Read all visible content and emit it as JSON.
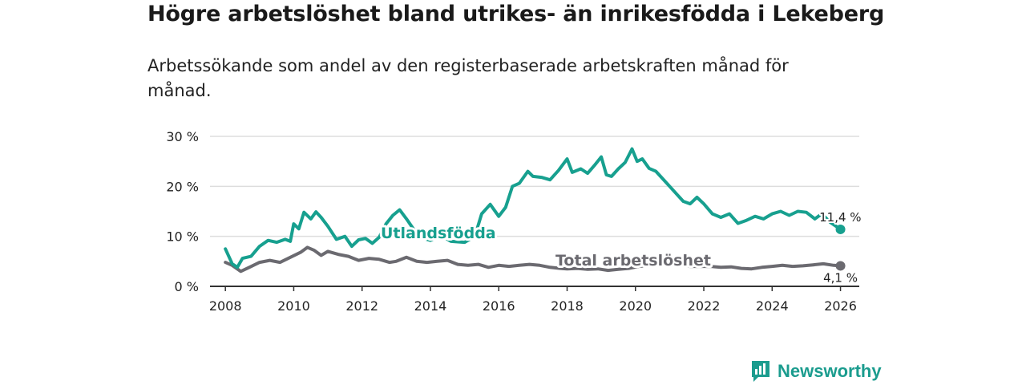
{
  "header": {
    "title": "Högre arbetslöshet bland utrikes- än inrikesfödda i Lekeberg",
    "subtitle": "Arbetssökande som andel av den registerbaserade arbetskraften månad för månad."
  },
  "brand": {
    "name": "Newsworthy",
    "icon": "bar-chart-icon",
    "color": "#1b9c8e"
  },
  "colors": {
    "utrikes": "#17a08f",
    "total": "#6b6a70",
    "grid": "#dddddd",
    "axis": "#333333"
  },
  "chart_data": {
    "type": "line",
    "title": "Högre arbetslöshet bland utrikes- än inrikesfödda i Lekeberg",
    "xlabel": "",
    "ylabel": "",
    "xlim": [
      2007.55,
      2026.55
    ],
    "ylim": [
      0,
      30
    ],
    "grid": true,
    "x_ticks": [
      2008,
      2010,
      2012,
      2014,
      2016,
      2018,
      2020,
      2022,
      2024,
      2026
    ],
    "x_tick_labels": [
      "2008",
      "2010",
      "2012",
      "2014",
      "2016",
      "2018",
      "2020",
      "2022",
      "2024",
      "2026"
    ],
    "y_ticks": [
      0,
      10,
      20,
      30
    ],
    "y_tick_labels": [
      "0 %",
      "10 %",
      "20 %",
      "30 %"
    ],
    "series": [
      {
        "name": "Utlandsfödda",
        "end_label": "11,4 %",
        "end_value": 11.4,
        "points": [
          [
            2008.0,
            7.5
          ],
          [
            2008.2,
            4.5
          ],
          [
            2008.35,
            3.8
          ],
          [
            2008.5,
            5.6
          ],
          [
            2008.75,
            6.0
          ],
          [
            2009.0,
            8.0
          ],
          [
            2009.25,
            9.2
          ],
          [
            2009.5,
            8.8
          ],
          [
            2009.75,
            9.4
          ],
          [
            2009.9,
            9.0
          ],
          [
            2010.0,
            12.5
          ],
          [
            2010.15,
            11.5
          ],
          [
            2010.3,
            14.8
          ],
          [
            2010.5,
            13.5
          ],
          [
            2010.65,
            14.9
          ],
          [
            2010.8,
            13.8
          ],
          [
            2011.0,
            12.0
          ],
          [
            2011.25,
            9.4
          ],
          [
            2011.5,
            10.0
          ],
          [
            2011.7,
            8.0
          ],
          [
            2011.9,
            9.3
          ],
          [
            2012.1,
            9.6
          ],
          [
            2012.3,
            8.6
          ],
          [
            2012.5,
            9.8
          ],
          [
            2012.7,
            12.5
          ],
          [
            2012.9,
            14.2
          ],
          [
            2013.1,
            15.3
          ],
          [
            2013.3,
            13.5
          ],
          [
            2013.5,
            11.5
          ],
          [
            2013.7,
            9.8
          ],
          [
            2014.0,
            9.2
          ],
          [
            2014.3,
            10.2
          ],
          [
            2014.6,
            9.0
          ],
          [
            2015.0,
            8.8
          ],
          [
            2015.3,
            10.0
          ],
          [
            2015.5,
            14.5
          ],
          [
            2015.75,
            16.4
          ],
          [
            2016.0,
            14.0
          ],
          [
            2016.2,
            15.8
          ],
          [
            2016.4,
            20.0
          ],
          [
            2016.6,
            20.6
          ],
          [
            2016.85,
            23.0
          ],
          [
            2017.0,
            22.0
          ],
          [
            2017.25,
            21.8
          ],
          [
            2017.5,
            21.3
          ],
          [
            2017.75,
            23.2
          ],
          [
            2018.0,
            25.5
          ],
          [
            2018.15,
            22.8
          ],
          [
            2018.4,
            23.5
          ],
          [
            2018.6,
            22.6
          ],
          [
            2018.8,
            24.2
          ],
          [
            2019.0,
            25.9
          ],
          [
            2019.15,
            22.3
          ],
          [
            2019.3,
            22.0
          ],
          [
            2019.5,
            23.5
          ],
          [
            2019.7,
            24.8
          ],
          [
            2019.9,
            27.5
          ],
          [
            2020.05,
            25.0
          ],
          [
            2020.2,
            25.5
          ],
          [
            2020.4,
            23.6
          ],
          [
            2020.6,
            23.0
          ],
          [
            2020.8,
            21.5
          ],
          [
            2021.0,
            20.0
          ],
          [
            2021.2,
            18.5
          ],
          [
            2021.4,
            17.0
          ],
          [
            2021.6,
            16.5
          ],
          [
            2021.8,
            17.8
          ],
          [
            2022.0,
            16.5
          ],
          [
            2022.25,
            14.5
          ],
          [
            2022.5,
            13.8
          ],
          [
            2022.75,
            14.5
          ],
          [
            2023.0,
            12.6
          ],
          [
            2023.25,
            13.2
          ],
          [
            2023.5,
            14.0
          ],
          [
            2023.75,
            13.5
          ],
          [
            2024.0,
            14.5
          ],
          [
            2024.25,
            15.0
          ],
          [
            2024.5,
            14.2
          ],
          [
            2024.75,
            15.0
          ],
          [
            2025.0,
            14.8
          ],
          [
            2025.25,
            13.5
          ],
          [
            2025.45,
            14.5
          ],
          [
            2025.7,
            12.8
          ],
          [
            2026.0,
            11.4
          ]
        ]
      },
      {
        "name": "Total arbetslöshet",
        "end_label": "4,1 %",
        "end_value": 4.1,
        "points": [
          [
            2008.0,
            4.8
          ],
          [
            2008.2,
            4.2
          ],
          [
            2008.45,
            3.0
          ],
          [
            2008.7,
            3.8
          ],
          [
            2009.0,
            4.8
          ],
          [
            2009.3,
            5.2
          ],
          [
            2009.6,
            4.8
          ],
          [
            2009.9,
            5.8
          ],
          [
            2010.2,
            6.8
          ],
          [
            2010.4,
            7.8
          ],
          [
            2010.6,
            7.2
          ],
          [
            2010.8,
            6.2
          ],
          [
            2011.0,
            7.0
          ],
          [
            2011.3,
            6.4
          ],
          [
            2011.6,
            6.0
          ],
          [
            2011.9,
            5.2
          ],
          [
            2012.2,
            5.6
          ],
          [
            2012.5,
            5.4
          ],
          [
            2012.8,
            4.8
          ],
          [
            2013.0,
            5.0
          ],
          [
            2013.3,
            5.8
          ],
          [
            2013.6,
            5.0
          ],
          [
            2013.9,
            4.8
          ],
          [
            2014.2,
            5.0
          ],
          [
            2014.5,
            5.2
          ],
          [
            2014.8,
            4.4
          ],
          [
            2015.1,
            4.2
          ],
          [
            2015.4,
            4.4
          ],
          [
            2015.7,
            3.8
          ],
          [
            2016.0,
            4.2
          ],
          [
            2016.3,
            4.0
          ],
          [
            2016.6,
            4.2
          ],
          [
            2016.9,
            4.4
          ],
          [
            2017.2,
            4.2
          ],
          [
            2017.5,
            3.8
          ],
          [
            2017.8,
            3.6
          ],
          [
            2018.0,
            3.5
          ],
          [
            2018.3,
            3.6
          ],
          [
            2018.6,
            3.4
          ],
          [
            2018.9,
            3.5
          ],
          [
            2019.2,
            3.2
          ],
          [
            2019.5,
            3.4
          ],
          [
            2019.8,
            3.6
          ],
          [
            2020.1,
            4.0
          ],
          [
            2020.4,
            4.2
          ],
          [
            2020.7,
            4.4
          ],
          [
            2021.0,
            4.2
          ],
          [
            2021.3,
            4.4
          ],
          [
            2021.6,
            4.0
          ],
          [
            2021.9,
            4.0
          ],
          [
            2022.2,
            4.0
          ],
          [
            2022.5,
            3.8
          ],
          [
            2022.8,
            3.9
          ],
          [
            2023.1,
            3.6
          ],
          [
            2023.4,
            3.5
          ],
          [
            2023.7,
            3.8
          ],
          [
            2024.0,
            4.0
          ],
          [
            2024.3,
            4.2
          ],
          [
            2024.6,
            4.0
          ],
          [
            2024.9,
            4.1
          ],
          [
            2025.2,
            4.3
          ],
          [
            2025.5,
            4.5
          ],
          [
            2025.8,
            4.2
          ],
          [
            2026.0,
            4.1
          ]
        ]
      }
    ],
    "annotations": [
      "Utlandsfödda",
      "Total arbetslöshet",
      "11,4 %",
      "4,1 %"
    ]
  }
}
